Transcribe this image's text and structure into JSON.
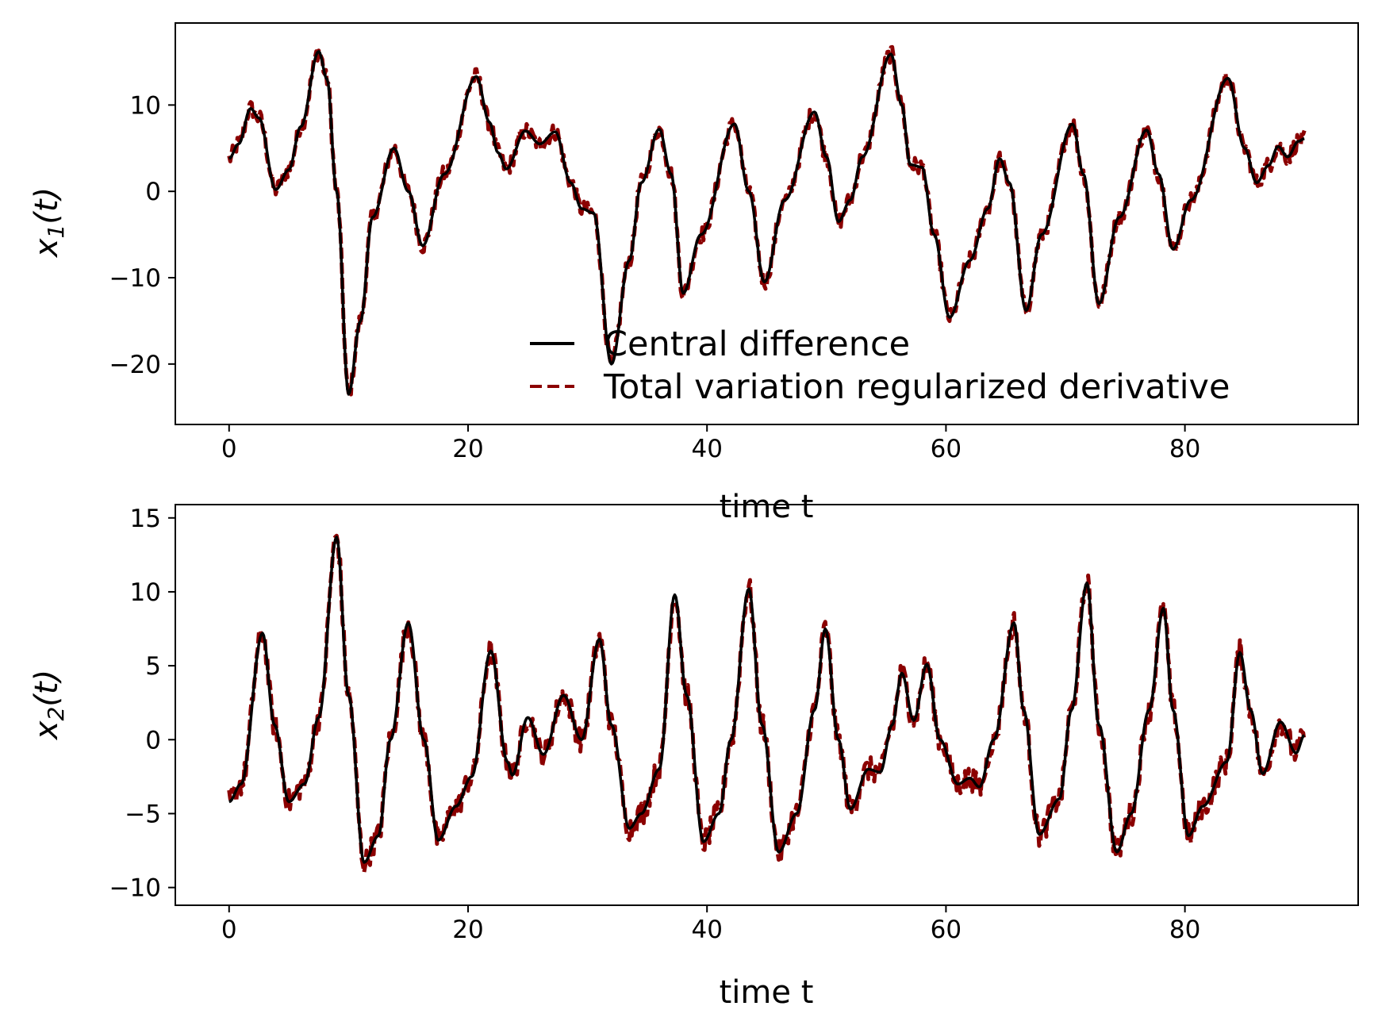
{
  "colors": {
    "central": "#000000",
    "tv": "#8b0000"
  },
  "legend": {
    "placement": "lower-right of top subplot",
    "entries": [
      {
        "label": "Central difference",
        "style": "solid",
        "color": "#000000"
      },
      {
        "label": "Total variation regularized derivative",
        "style": "dashed",
        "color": "#8b0000"
      }
    ]
  },
  "chart_data": [
    {
      "type": "line",
      "xlabel": "time t",
      "ylabel": {
        "base": "x",
        "sub": "1",
        "suffix": "(t)"
      },
      "xlim": [
        -4.5,
        94.5
      ],
      "ylim": [
        -27,
        19.5
      ],
      "xticks": [
        0,
        20,
        40,
        60,
        80
      ],
      "yticks": [
        10,
        0,
        -10,
        -20
      ],
      "ytick_labels": [
        "10",
        "0",
        "−10",
        "−20"
      ],
      "noise_amplitude": 1.0,
      "keypoints": [
        [
          0,
          3.8
        ],
        [
          0.8,
          5.5
        ],
        [
          1.8,
          9.6
        ],
        [
          2.5,
          8.5
        ],
        [
          3.9,
          0.2
        ],
        [
          5.0,
          2.5
        ],
        [
          6.0,
          7.5
        ],
        [
          7.5,
          16.2
        ],
        [
          8.2,
          13
        ],
        [
          9.0,
          0
        ],
        [
          10.0,
          -23.5
        ],
        [
          11.0,
          -15
        ],
        [
          12.0,
          -3
        ],
        [
          13.8,
          5.0
        ],
        [
          15.0,
          0
        ],
        [
          16.2,
          -6.3
        ],
        [
          18.0,
          2.0
        ],
        [
          20.7,
          13.3
        ],
        [
          21.8,
          8
        ],
        [
          22.5,
          4.5
        ],
        [
          23.2,
          2.6
        ],
        [
          24.8,
          7.0
        ],
        [
          26.0,
          5.5
        ],
        [
          27.3,
          6.9
        ],
        [
          28.6,
          1.0
        ],
        [
          29.5,
          -2.0
        ],
        [
          30.5,
          -2.5
        ],
        [
          32.0,
          -20.0
        ],
        [
          33.5,
          -8
        ],
        [
          34.5,
          1
        ],
        [
          36.0,
          7.2
        ],
        [
          37.0,
          2
        ],
        [
          38.0,
          -11.8
        ],
        [
          39.5,
          -5
        ],
        [
          42.3,
          7.8
        ],
        [
          43.5,
          0
        ],
        [
          44.8,
          -10.5
        ],
        [
          46.5,
          -1
        ],
        [
          49.0,
          9.2
        ],
        [
          50.0,
          4
        ],
        [
          51.0,
          -3.5
        ],
        [
          52.0,
          -1.0
        ],
        [
          53.0,
          4
        ],
        [
          55.4,
          15.9
        ],
        [
          56.3,
          10
        ],
        [
          57.0,
          3.1
        ],
        [
          58.0,
          2.8
        ],
        [
          59.0,
          -5
        ],
        [
          60.3,
          -14.6
        ],
        [
          62.0,
          -8.0
        ],
        [
          63.5,
          -2
        ],
        [
          64.5,
          3.8
        ],
        [
          65.3,
          1
        ],
        [
          66.7,
          -13.8
        ],
        [
          68.0,
          -5
        ],
        [
          70.6,
          7.8
        ],
        [
          71.5,
          2
        ],
        [
          72.8,
          -13.0
        ],
        [
          74.5,
          -3
        ],
        [
          76.8,
          7.1
        ],
        [
          77.8,
          2
        ],
        [
          79.0,
          -6.7
        ],
        [
          80.5,
          -1.0
        ],
        [
          83.6,
          13.1
        ],
        [
          85.0,
          5
        ],
        [
          86.0,
          1.0
        ],
        [
          87.0,
          3.0
        ],
        [
          87.8,
          5.2
        ],
        [
          88.6,
          4.0
        ],
        [
          89.5,
          5.8
        ],
        [
          90.0,
          6.1
        ]
      ]
    },
    {
      "type": "line",
      "xlabel": "time t",
      "ylabel": {
        "base": "x",
        "sub": "2",
        "suffix": "(t)"
      },
      "xlim": [
        -4.5,
        94.5
      ],
      "ylim": [
        -11.2,
        15.9
      ],
      "xticks": [
        0,
        20,
        40,
        60,
        80
      ],
      "yticks": [
        15,
        10,
        5,
        0,
        -5,
        -10
      ],
      "ytick_labels": [
        "15",
        "10",
        "5",
        "0",
        "−5",
        "−10"
      ],
      "noise_amplitude": 0.85,
      "keypoints": [
        [
          0,
          -4.2
        ],
        [
          1.0,
          -3.0
        ],
        [
          2.8,
          7.2
        ],
        [
          3.8,
          1
        ],
        [
          5.0,
          -4.2
        ],
        [
          6.3,
          -3.0
        ],
        [
          7.5,
          1.5
        ],
        [
          9.0,
          13.7
        ],
        [
          10.0,
          3
        ],
        [
          11.3,
          -8.3
        ],
        [
          12.5,
          -6.5
        ],
        [
          13.5,
          0
        ],
        [
          15.0,
          7.9
        ],
        [
          16.3,
          0
        ],
        [
          17.5,
          -6.8
        ],
        [
          19.0,
          -4.5
        ],
        [
          20.3,
          -2.5
        ],
        [
          21.9,
          6.0
        ],
        [
          23.3,
          -1.5
        ],
        [
          23.7,
          -2.4
        ],
        [
          25.0,
          1.5
        ],
        [
          26.3,
          -1.0
        ],
        [
          28.0,
          3.0
        ],
        [
          29.5,
          0.0
        ],
        [
          31.0,
          6.8
        ],
        [
          32.0,
          1
        ],
        [
          33.5,
          -6.0
        ],
        [
          34.5,
          -5.0
        ],
        [
          36.0,
          -2
        ],
        [
          37.3,
          9.8
        ],
        [
          38.3,
          3
        ],
        [
          39.7,
          -6.9
        ],
        [
          41.0,
          -5.0
        ],
        [
          42.0,
          0
        ],
        [
          43.5,
          10.2
        ],
        [
          44.6,
          1
        ],
        [
          46.0,
          -7.6
        ],
        [
          47.5,
          -5.0
        ],
        [
          49.0,
          2
        ],
        [
          49.9,
          7.5
        ],
        [
          51.0,
          0
        ],
        [
          52.0,
          -4.7
        ],
        [
          53.5,
          -2.0
        ],
        [
          54.5,
          -2.2
        ],
        [
          55.5,
          1
        ],
        [
          56.3,
          4.5
        ],
        [
          57.3,
          1.3
        ],
        [
          58.4,
          5.1
        ],
        [
          59.5,
          0
        ],
        [
          61.0,
          -3.0
        ],
        [
          62.0,
          -2.6
        ],
        [
          62.8,
          -3.2
        ],
        [
          64.0,
          0
        ],
        [
          65.7,
          7.9
        ],
        [
          66.5,
          2
        ],
        [
          67.8,
          -6.4
        ],
        [
          69.5,
          -4.0
        ],
        [
          70.5,
          2
        ],
        [
          71.8,
          10.6
        ],
        [
          72.8,
          1
        ],
        [
          74.3,
          -7.6
        ],
        [
          75.5,
          -5.0
        ],
        [
          77.0,
          2
        ],
        [
          78.2,
          8.9
        ],
        [
          79.0,
          2
        ],
        [
          80.3,
          -6.5
        ],
        [
          81.5,
          -4.5
        ],
        [
          83.5,
          -1.5
        ],
        [
          84.6,
          5.9
        ],
        [
          85.5,
          2
        ],
        [
          86.5,
          -2.3
        ],
        [
          88.0,
          1.2
        ],
        [
          89.3,
          -0.9
        ],
        [
          90.0,
          0.3
        ]
      ]
    }
  ]
}
